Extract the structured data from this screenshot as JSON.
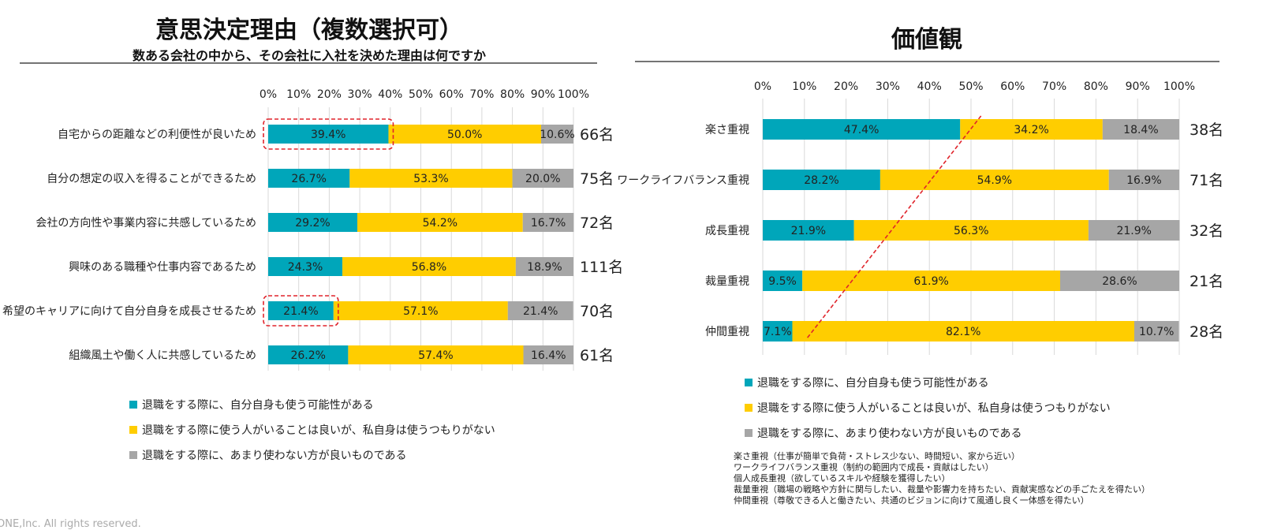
{
  "colors": {
    "cyan": "#00A6BA",
    "yellow": "#FFCD00",
    "gray": "#A6A6A6",
    "highlight": "#E0242B"
  },
  "legend": [
    "退職をする際に、自分自身も使う可能性がある",
    "退職をする際に使う人がいることは良いが、私自身は使うつもりがない",
    "退職をする際に、あまり使わない方が良いものである"
  ],
  "footer": "ONE,Inc.  All rights reserved.",
  "notes": [
    "楽さ重視（仕事が簡単で負荷・ストレス少ない、時間短い、家から近い）",
    "ワークライフバランス重視（制約の範囲内で成長・貢献はしたい）",
    "個人成長重視（欲しているスキルや経験を獲得したい）",
    "裁量重視（職場の戦略や方針に関与したい、裁量や影響力を持ちたい、貢献実感などの手ごたえを得たい）",
    "仲間重視（尊敬できる人と働きたい、共通のビジョンに向けて風通し良く一体感を得たい）"
  ],
  "chart_data": [
    {
      "type": "bar",
      "stacked": true,
      "orientation": "horizontal",
      "title": "意思決定理由（複数選択可）",
      "subtitle": "数ある会社の中から、その会社に入社を決めた理由は何ですか",
      "xlim": [
        0,
        100
      ],
      "ticks": [
        "0%",
        "10%",
        "20%",
        "30%",
        "40%",
        "50%",
        "60%",
        "70%",
        "80%",
        "90%",
        "100%"
      ],
      "categories": [
        "自宅からの距離などの利便性が良いため",
        "自分の想定の収入を得ることができるため",
        "会社の方向性や事業内容に共感しているため",
        "興味のある職種や仕事内容であるため",
        "希望のキャリアに向けて自分自身を成長させるため",
        "組織風土や働く人に共感しているため"
      ],
      "series": [
        {
          "name": "退職をする際に、自分自身も使う可能性がある",
          "values": [
            39.4,
            26.7,
            29.2,
            24.3,
            21.4,
            26.2
          ],
          "labels": [
            "39.4%",
            "26.7%",
            "29.2%",
            "24.3%",
            "21.4%",
            "26.2%"
          ]
        },
        {
          "name": "退職をする際に使う人がいることは良いが、私自身は使うつもりがない",
          "values": [
            50.0,
            53.3,
            54.2,
            56.8,
            57.1,
            57.4
          ],
          "labels": [
            "50.0%",
            "53.3%",
            "54.2%",
            "56.8%",
            "57.1%",
            "57.4%"
          ]
        },
        {
          "name": "退職をする際に、あまり使わない方が良いものである",
          "values": [
            10.6,
            20.0,
            16.7,
            18.9,
            21.4,
            16.4
          ],
          "labels": [
            "10.6%",
            "20.0%",
            "16.7%",
            "18.9%",
            "21.4%",
            "16.4%"
          ]
        }
      ],
      "counts": [
        "66名",
        "75名",
        "72名",
        "111名",
        "70名",
        "61名"
      ],
      "highlighted": [
        0,
        4
      ],
      "legend_position": "bottom-left"
    },
    {
      "type": "bar",
      "stacked": true,
      "orientation": "horizontal",
      "title": "価値観",
      "xlim": [
        0,
        100
      ],
      "ticks": [
        "0%",
        "10%",
        "20%",
        "30%",
        "40%",
        "50%",
        "60%",
        "70%",
        "80%",
        "90%",
        "100%"
      ],
      "categories": [
        "楽さ重視",
        "ワークライフバランス重視",
        "成長重視",
        "裁量重視",
        "仲間重視"
      ],
      "series": [
        {
          "name": "退職をする際に、自分自身も使う可能性がある",
          "values": [
            47.4,
            28.2,
            21.9,
            9.5,
            7.1
          ],
          "labels": [
            "47.4%",
            "28.2%",
            "21.9%",
            "9.5%",
            "7.1%"
          ]
        },
        {
          "name": "退職をする際に使う人がいることは良いが、私自身は使うつもりがない",
          "values": [
            34.2,
            54.9,
            56.3,
            61.9,
            82.1
          ],
          "labels": [
            "34.2%",
            "54.9%",
            "56.3%",
            "61.9%",
            "82.1%"
          ]
        },
        {
          "name": "退職をする際に、あまり使わない方が良いものである",
          "values": [
            18.4,
            16.9,
            21.9,
            28.6,
            10.7
          ],
          "labels": [
            "18.4%",
            "16.9%",
            "21.9%",
            "28.6%",
            "10.7%"
          ]
        }
      ],
      "counts": [
        "38名",
        "71名",
        "32名",
        "21名",
        "28名"
      ],
      "trend_line": true,
      "legend_position": "bottom-left"
    }
  ]
}
